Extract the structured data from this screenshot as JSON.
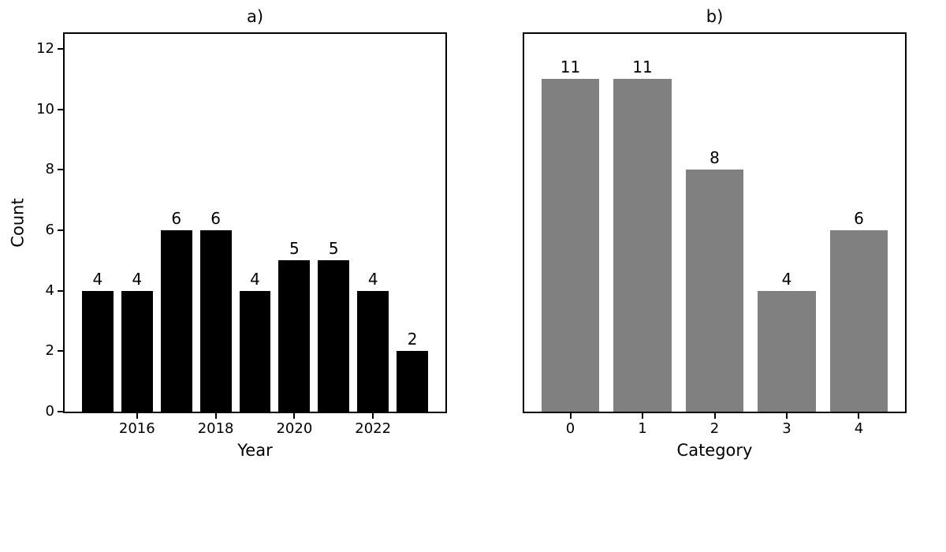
{
  "figure": {
    "background": "#ffffff",
    "text_color": "#000000"
  },
  "chart_data": [
    {
      "type": "bar",
      "panel": "a",
      "title": "a)",
      "xlabel": "Year",
      "ylabel": "Count",
      "x": [
        2015,
        2016,
        2017,
        2018,
        2019,
        2020,
        2021,
        2022,
        2023
      ],
      "values": [
        4,
        4,
        6,
        6,
        4,
        5,
        5,
        4,
        2
      ],
      "value_labels": [
        "4",
        "4",
        "6",
        "6",
        "4",
        "5",
        "5",
        "4",
        "2"
      ],
      "bar_color": "#000000",
      "bar_width": 0.8,
      "xticks": [
        2016,
        2018,
        2020,
        2022
      ],
      "xtick_labels": [
        "2016",
        "2018",
        "2020",
        "2022"
      ],
      "yticks": [
        0,
        2,
        4,
        6,
        8,
        10,
        12
      ],
      "ytick_labels": [
        "0",
        "2",
        "4",
        "6",
        "8",
        "10",
        "12"
      ],
      "ylim": [
        0,
        12.5
      ],
      "show_ytick_labels": true,
      "grid": false,
      "legend": null
    },
    {
      "type": "bar",
      "panel": "b",
      "title": "b)",
      "xlabel": "Category",
      "ylabel": "",
      "x": [
        0,
        1,
        2,
        3,
        4
      ],
      "values": [
        11,
        11,
        8,
        4,
        6
      ],
      "value_labels": [
        "11",
        "11",
        "8",
        "4",
        "6"
      ],
      "bar_color": "#808080",
      "bar_width": 0.8,
      "xticks": [
        0,
        1,
        2,
        3,
        4
      ],
      "xtick_labels": [
        "0",
        "1",
        "2",
        "3",
        "4"
      ],
      "yticks": [],
      "ytick_labels": [],
      "ylim": [
        0,
        12.5
      ],
      "show_ytick_labels": false,
      "grid": false,
      "legend": null
    }
  ]
}
